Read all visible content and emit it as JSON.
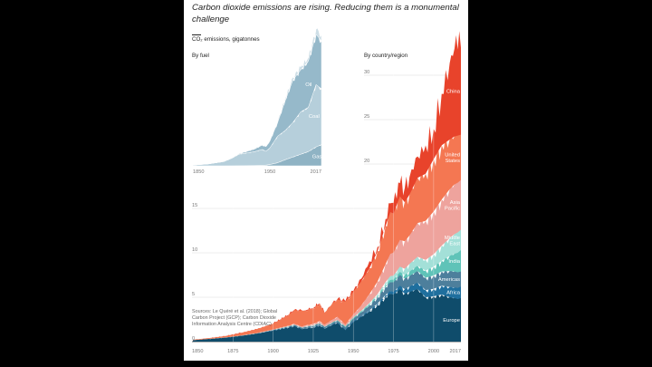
{
  "header": {
    "title": "Carbon dioxide emissions are rising. Reducing them is a monumental challenge",
    "subtitle": "CO₂ emissions, gigatonnes"
  },
  "source": [
    "Sources: Le Quéré et al. (2018); Global",
    "Carbon Project (GCP); Carbon Dioxide",
    "Information Analysis Centre (CDIAC)"
  ],
  "colors": {
    "background": "#000000",
    "card": "#ffffff",
    "gridline": "#d9d9d9"
  },
  "chart_data": [
    {
      "type": "area",
      "stacked": true,
      "title": "By country/region",
      "xlabel": "",
      "ylabel": "CO₂ emissions, gigatonnes",
      "xlim": [
        1850,
        2017
      ],
      "ylim": [
        0,
        35
      ],
      "grid": true,
      "xticks": [
        1850,
        1875,
        1900,
        1925,
        1950,
        1975,
        2000,
        2017
      ],
      "yticks": [
        0,
        5,
        10,
        15,
        20,
        25,
        30
      ],
      "x": [
        1850,
        1860,
        1870,
        1880,
        1890,
        1900,
        1910,
        1913,
        1918,
        1920,
        1925,
        1929,
        1932,
        1937,
        1940,
        1945,
        1950,
        1955,
        1960,
        1965,
        1970,
        1973,
        1975,
        1979,
        1982,
        1985,
        1990,
        1995,
        2000,
        2005,
        2010,
        2013,
        2015,
        2017
      ],
      "series": [
        {
          "name": "Europe",
          "color": "#0f4c6b",
          "values": [
            0.17,
            0.3,
            0.45,
            0.65,
            0.9,
            1.25,
            1.6,
            1.75,
            1.4,
            1.5,
            1.6,
            1.85,
            1.45,
            1.9,
            2.1,
            1.3,
            2.2,
            2.8,
            3.4,
            4.1,
            5.0,
            5.4,
            5.3,
            5.9,
            5.4,
            5.6,
            5.9,
            5.0,
            5.1,
            5.3,
            5.0,
            4.9,
            4.8,
            4.9
          ]
        },
        {
          "name": "Africa",
          "color": "#1f6f9e",
          "values": [
            0.0,
            0.0,
            0.0,
            0.0,
            0.0,
            0.01,
            0.02,
            0.02,
            0.02,
            0.02,
            0.03,
            0.03,
            0.03,
            0.04,
            0.05,
            0.06,
            0.08,
            0.1,
            0.13,
            0.17,
            0.25,
            0.3,
            0.33,
            0.4,
            0.5,
            0.6,
            0.75,
            0.8,
            0.85,
            1.0,
            1.15,
            1.2,
            1.25,
            1.3
          ]
        },
        {
          "name": "Americas",
          "color": "#4d7f9c",
          "values": [
            0.0,
            0.0,
            0.01,
            0.02,
            0.03,
            0.05,
            0.08,
            0.1,
            0.12,
            0.13,
            0.15,
            0.18,
            0.15,
            0.18,
            0.2,
            0.25,
            0.3,
            0.4,
            0.55,
            0.7,
            0.9,
            1.0,
            1.05,
            1.2,
            1.2,
            1.2,
            1.3,
            1.4,
            1.5,
            1.6,
            1.8,
            1.8,
            1.75,
            1.7
          ]
        },
        {
          "name": "India",
          "color": "#5fc3b8",
          "values": [
            0.0,
            0.0,
            0.0,
            0.0,
            0.01,
            0.02,
            0.03,
            0.04,
            0.04,
            0.04,
            0.05,
            0.05,
            0.05,
            0.06,
            0.07,
            0.08,
            0.1,
            0.12,
            0.15,
            0.2,
            0.25,
            0.27,
            0.3,
            0.35,
            0.4,
            0.5,
            0.6,
            0.8,
            1.0,
            1.2,
            1.7,
            2.0,
            2.2,
            2.4
          ]
        },
        {
          "name": "Middle East",
          "color": "#a3e0d8",
          "values": [
            0.0,
            0.0,
            0.0,
            0.0,
            0.0,
            0.0,
            0.0,
            0.0,
            0.0,
            0.0,
            0.01,
            0.01,
            0.01,
            0.02,
            0.02,
            0.03,
            0.05,
            0.08,
            0.12,
            0.18,
            0.3,
            0.4,
            0.45,
            0.6,
            0.7,
            0.85,
            1.0,
            1.2,
            1.4,
            1.7,
            2.0,
            2.2,
            2.3,
            2.3
          ]
        },
        {
          "name": "Asia Pacific",
          "color": "#eea39d",
          "values": [
            0.0,
            0.0,
            0.01,
            0.02,
            0.03,
            0.05,
            0.08,
            0.1,
            0.12,
            0.13,
            0.15,
            0.2,
            0.2,
            0.28,
            0.35,
            0.2,
            0.35,
            0.6,
            1.0,
            1.4,
            2.0,
            2.5,
            2.6,
            3.0,
            3.1,
            3.2,
            3.8,
            4.4,
            4.8,
            5.2,
            5.5,
            5.6,
            5.6,
            5.6
          ]
        },
        {
          "name": "United States",
          "color": "#f47752",
          "values": [
            0.05,
            0.1,
            0.15,
            0.3,
            0.45,
            0.65,
            1.25,
            1.55,
            1.8,
            1.7,
            1.8,
            2.0,
            1.35,
            1.85,
            1.95,
            2.6,
            2.55,
            2.7,
            2.9,
            3.4,
            4.3,
            4.7,
            4.4,
            4.9,
            4.4,
            4.6,
            5.1,
            5.3,
            5.9,
            6.1,
            5.6,
            5.4,
            5.3,
            5.1
          ]
        },
        {
          "name": "China",
          "color": "#e8432b",
          "values": [
            0.0,
            0.0,
            0.0,
            0.0,
            0.0,
            0.0,
            0.01,
            0.01,
            0.01,
            0.01,
            0.02,
            0.03,
            0.03,
            0.03,
            0.05,
            0.05,
            0.08,
            0.3,
            0.8,
            0.5,
            0.8,
            1.0,
            1.2,
            1.5,
            1.6,
            2.0,
            2.4,
            3.2,
            3.4,
            5.8,
            8.6,
            9.9,
            9.7,
            9.8
          ]
        }
      ],
      "annotations": [
        "China",
        "United States",
        "Asia Pacific",
        "Middle East",
        "India",
        "Americas",
        "Africa",
        "Europe"
      ]
    },
    {
      "type": "area",
      "stacked": true,
      "title": "By fuel",
      "xlim": [
        1850,
        2017
      ],
      "xticks": [
        1850,
        1950,
        2017
      ],
      "x": [
        1850,
        1870,
        1890,
        1900,
        1910,
        1920,
        1930,
        1940,
        1945,
        1950,
        1960,
        1970,
        1980,
        1990,
        2000,
        2010,
        2017
      ],
      "series": [
        {
          "name": "Gas",
          "color": "#8fb3c4",
          "values": [
            0,
            0,
            0,
            0.01,
            0.02,
            0.04,
            0.08,
            0.15,
            0.2,
            0.35,
            0.8,
            1.6,
            2.3,
            3.0,
            3.7,
            4.9,
            5.5
          ]
        },
        {
          "name": "Coal",
          "color": "#b6cfdb",
          "values": [
            0.2,
            0.5,
            1.1,
            1.9,
            3.0,
            3.3,
            3.6,
            4.1,
            3.6,
            4.3,
            6.9,
            7.6,
            9.0,
            11.0,
            11.5,
            16.2,
            14.5
          ]
        },
        {
          "name": "Oil",
          "color": "#96b9ca",
          "values": [
            0,
            0,
            0.03,
            0.06,
            0.15,
            0.4,
            0.7,
            1.1,
            1.2,
            1.8,
            3.5,
            7.8,
            11.0,
            10.9,
            12.0,
            13.0,
            12.4
          ]
        },
        {
          "name": "Other",
          "color": "#cfdfe7",
          "values": [
            0,
            0,
            0,
            0,
            0,
            0.01,
            0.05,
            0.08,
            0.07,
            0.12,
            0.3,
            0.6,
            0.7,
            0.8,
            0.9,
            1.4,
            1.6
          ]
        }
      ],
      "annotations": [
        "Oil",
        "Coal",
        "Gas"
      ]
    }
  ]
}
